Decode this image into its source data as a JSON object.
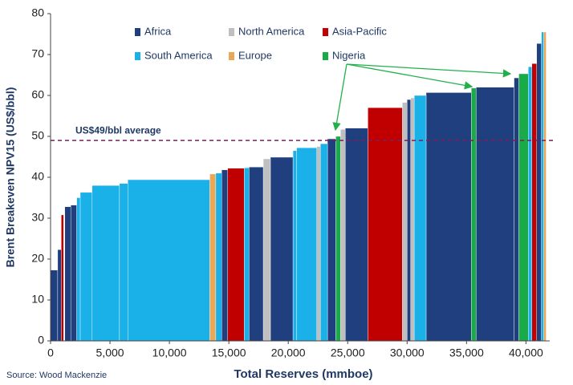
{
  "chart_data": {
    "type": "variable_width_bar",
    "x_label": "Total Reserves (mmboe)",
    "y_label": "Brent Breakeven NPV15 (US$/bbl)",
    "source": "Source: Wood Mackenzie",
    "xlim": [
      0,
      42000
    ],
    "ylim": [
      0,
      80
    ],
    "xticks": [
      0,
      {
        "value": 5000,
        "label": "5,000"
      },
      {
        "value": 10000,
        "label": "10,000"
      },
      {
        "value": 15000,
        "label": "15,000"
      },
      {
        "value": 20000,
        "label": "20,000"
      },
      {
        "value": 25000,
        "label": "25,000"
      },
      {
        "value": 30000,
        "label": "30,000"
      },
      {
        "value": 35000,
        "label": "35,000"
      },
      {
        "value": 40000,
        "label": "40,000"
      }
    ],
    "yticks": [
      0,
      10,
      20,
      30,
      40,
      50,
      60,
      70,
      80
    ],
    "average": {
      "value": 49,
      "label": "US$49/bbl average",
      "color": "#7b1f5e"
    },
    "series": [
      {
        "name": "Africa",
        "color": "#1f3f7f",
        "x0": [
          0,
          600,
          1200,
          1700,
          14400,
          16700,
          18500,
          23300,
          24800,
          30000,
          31600,
          35800,
          39000,
          40900
        ],
        "x1": [
          600,
          900,
          1700,
          2200,
          14900,
          17900,
          20400,
          24000,
          26700,
          30300,
          35400,
          39000,
          39400,
          41300
        ],
        "values": [
          17.3,
          22.3,
          32.8,
          33.2,
          41.8,
          42.5,
          44.9,
          49.4,
          52,
          59,
          60.7,
          62,
          64.3,
          72.7
        ]
      },
      {
        "name": "North America",
        "color": "#bfbfbf",
        "x0": [
          17900,
          22400,
          24400,
          29600,
          30300
        ],
        "x1": [
          18500,
          22700,
          24800,
          30000,
          30600
        ],
        "values": [
          44.5,
          47.5,
          51.7,
          58.3,
          59.4
        ]
      },
      {
        "name": "Asia-Pacific",
        "color": "#c00000",
        "x0": [
          900,
          14900,
          26700,
          40500
        ],
        "x1": [
          1100,
          16300,
          29600,
          40900
        ],
        "values": [
          30.8,
          42.2,
          57,
          67.8
        ]
      },
      {
        "name": "South America",
        "color": "#1ab0e8",
        "x0": [
          2200,
          2500,
          3500,
          5800,
          6500,
          13900,
          16300,
          20400,
          20700,
          22700,
          30600,
          40200,
          41300
        ],
        "x1": [
          2500,
          3500,
          5800,
          6500,
          13400,
          14400,
          16700,
          20700,
          22400,
          23300,
          31600,
          40500,
          41500
        ],
        "values": [
          35,
          36.3,
          38,
          38.5,
          39.4,
          41,
          42.3,
          46.5,
          47.2,
          48.2,
          60,
          67,
          75.5
        ]
      },
      {
        "name": "Europe",
        "color": "#e8a858",
        "x0": [
          13400,
          41500
        ],
        "x1": [
          13900,
          41700
        ],
        "values": [
          40.8,
          75.5
        ]
      },
      {
        "name": "Nigeria",
        "color": "#1aaa4a",
        "x0": [
          24000,
          35400,
          39400
        ],
        "x1": [
          24400,
          35800,
          40200
        ],
        "values": [
          50,
          61.8,
          65.3
        ]
      }
    ]
  }
}
